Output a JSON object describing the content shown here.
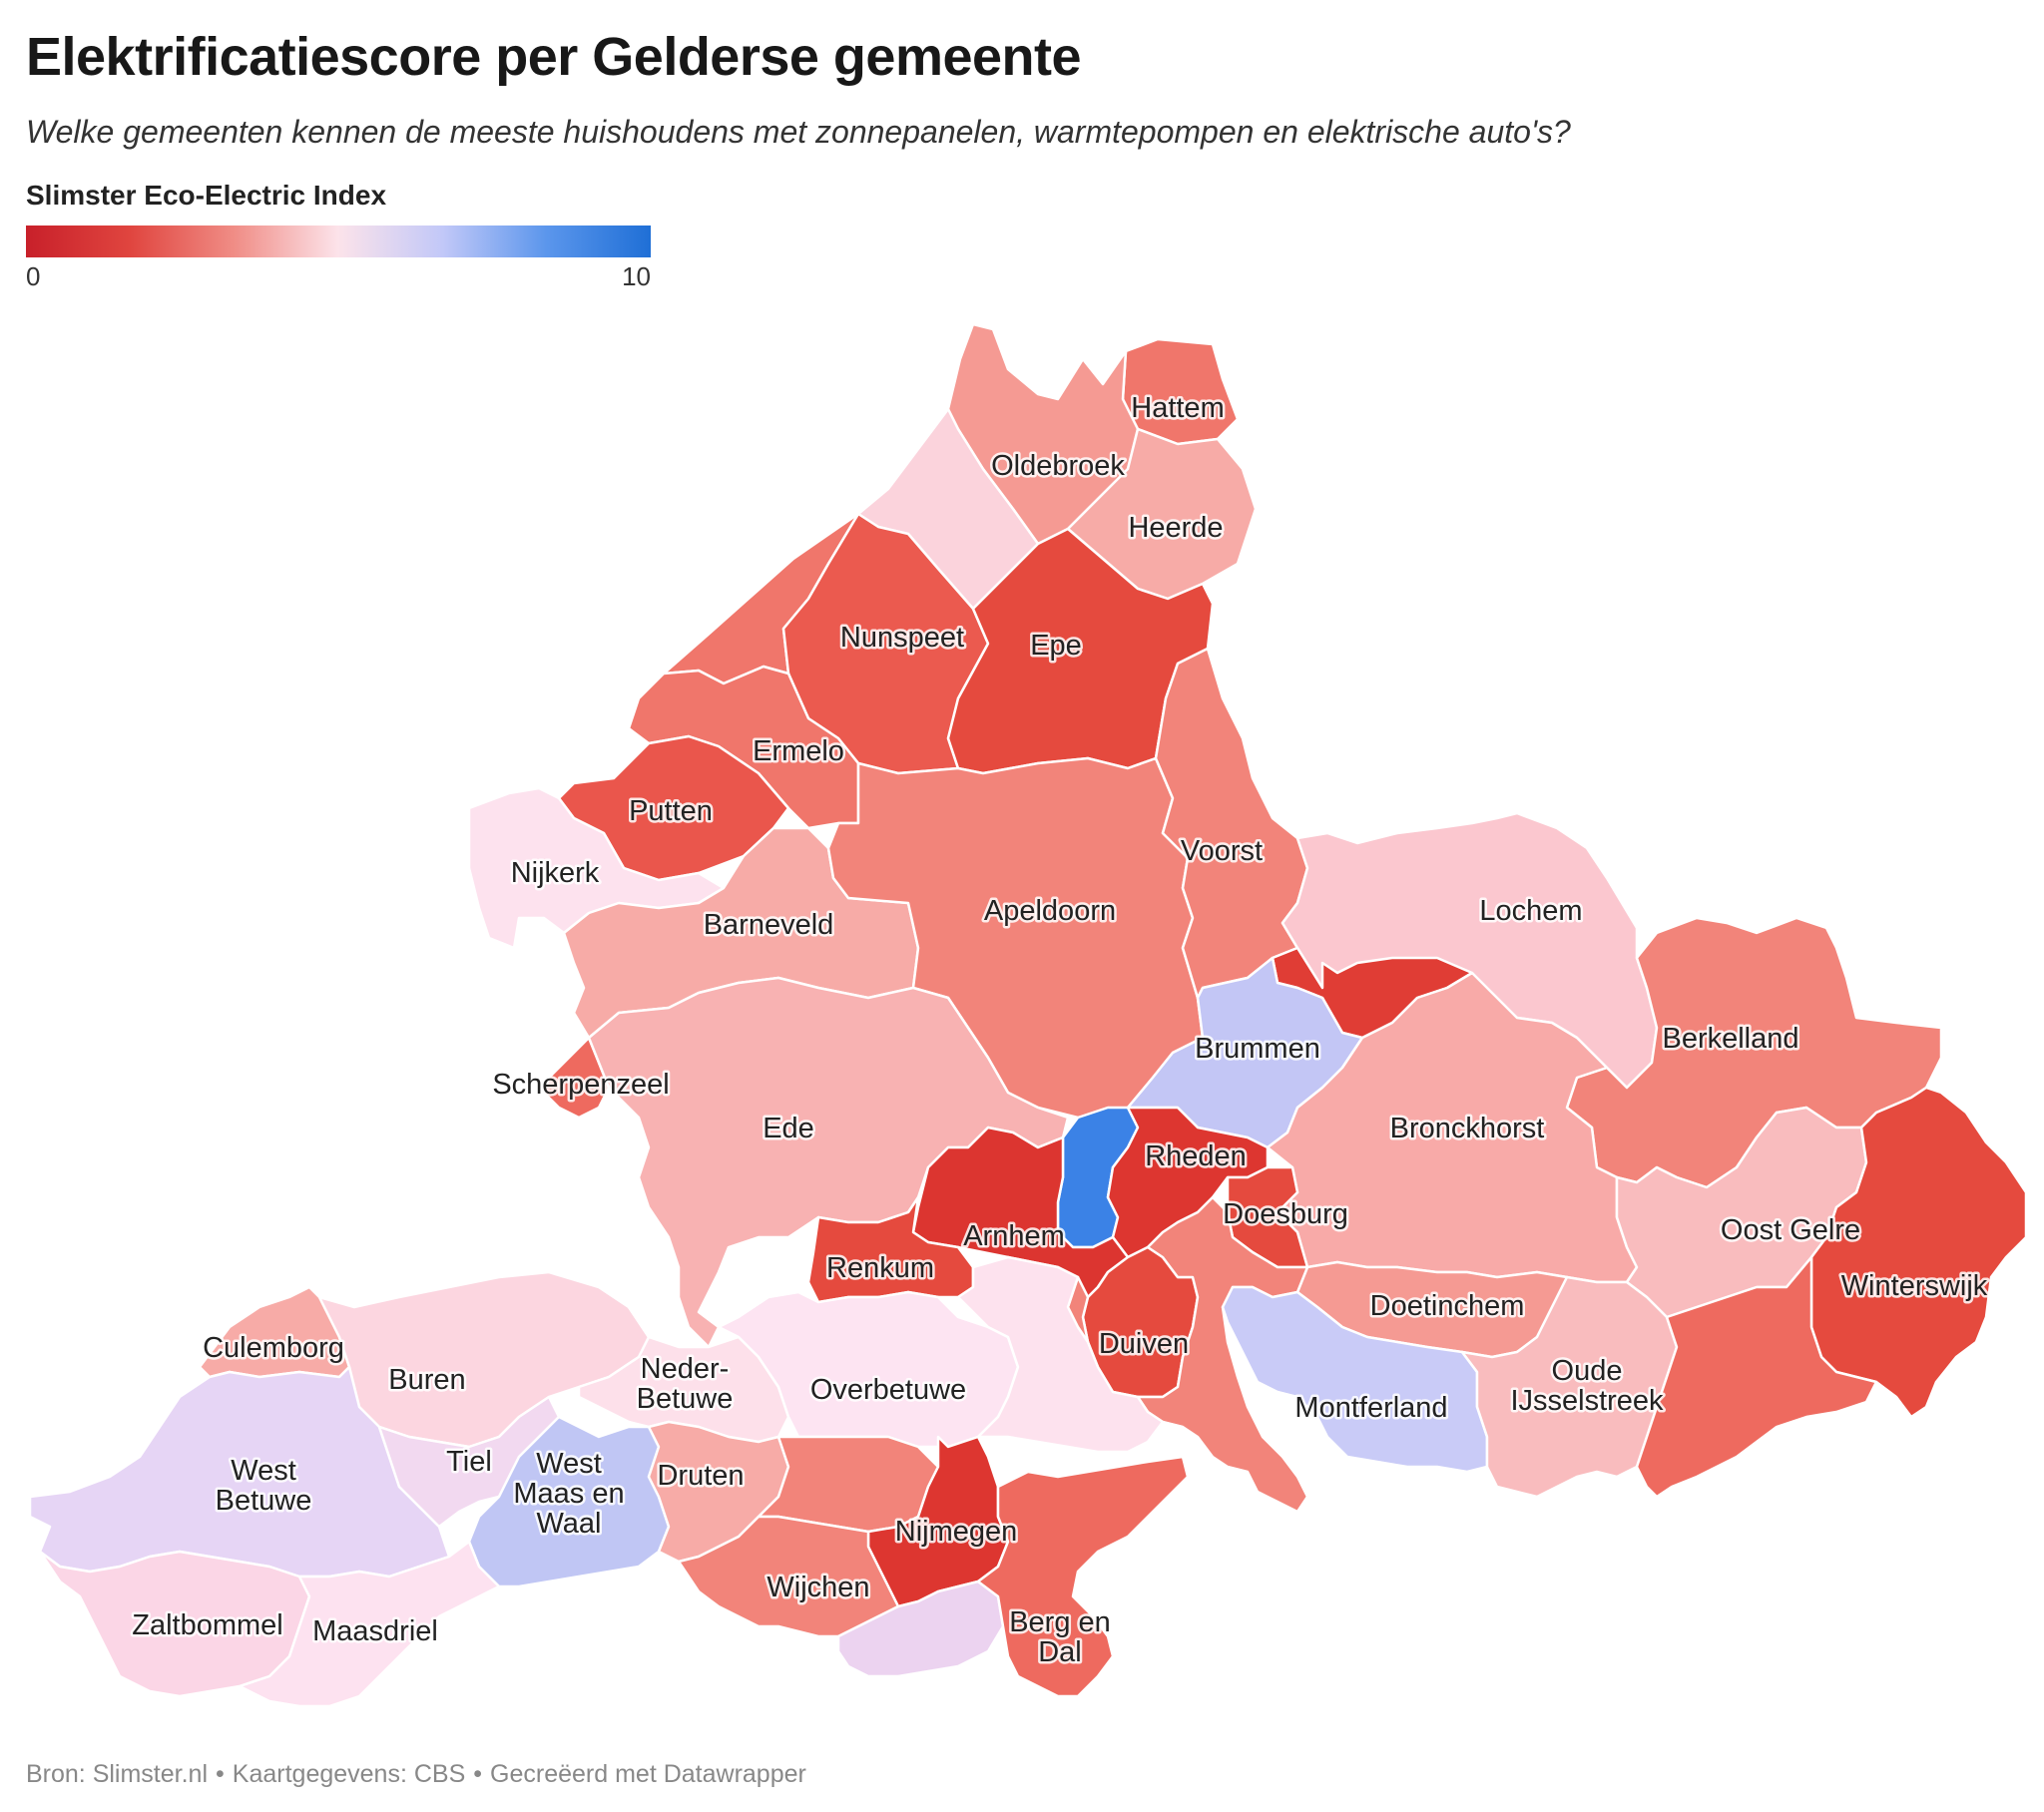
{
  "header": {
    "title": "Elektrificatiescore per Gelderse gemeente",
    "subtitle": "Welke gemeenten kennen de meeste huishoudens met zonnepanelen, warmtepompen en elektrische auto's?"
  },
  "legend": {
    "title": "Slimster Eco-Electric Index",
    "min_label": "0",
    "max_label": "10",
    "scale_min": 0,
    "scale_max": 10,
    "colors": [
      "#c8202a",
      "#e0453f",
      "#f08d86",
      "#fce3ea",
      "#c2c8f8",
      "#5b96ec",
      "#1f6fd6"
    ]
  },
  "map": {
    "municipalities": [
      {
        "id": "hattem",
        "name": "Hattem",
        "color": "#f0766b"
      },
      {
        "id": "oldebroek",
        "name": "Oldebroek",
        "color": "#f59a93"
      },
      {
        "id": "heerde",
        "name": "Heerde",
        "color": "#f7aba7"
      },
      {
        "id": "elburg",
        "name": "",
        "color": "#fbd3dc"
      },
      {
        "id": "harderwijk",
        "name": "",
        "color": "#f0766b"
      },
      {
        "id": "nunspeet",
        "name": "Nunspeet",
        "color": "#eb5a4f"
      },
      {
        "id": "epe",
        "name": "Epe",
        "color": "#e54a3e"
      },
      {
        "id": "ermelo",
        "name": "Ermelo",
        "color": "#f0766b"
      },
      {
        "id": "putten",
        "name": "Putten",
        "color": "#ea564c"
      },
      {
        "id": "nijkerk",
        "name": "Nijkerk",
        "color": "#fde2ee"
      },
      {
        "id": "barneveld",
        "name": "Barneveld",
        "color": "#f7aba7"
      },
      {
        "id": "apeldoorn",
        "name": "Apeldoorn",
        "color": "#f2847a"
      },
      {
        "id": "voorst",
        "name": "Voorst",
        "color": "#f2847a"
      },
      {
        "id": "lochem",
        "name": "Lochem",
        "color": "#fbc7cf"
      },
      {
        "id": "berkelland",
        "name": "Berkelland",
        "color": "#f2847a"
      },
      {
        "id": "zutphen",
        "name": "",
        "color": "#e03d35"
      },
      {
        "id": "brummen",
        "name": "Brummen",
        "color": "#c3c6f5"
      },
      {
        "id": "scherpenzeel",
        "name": "Scherpenzeel",
        "color": "#ee6a5f"
      },
      {
        "id": "ede",
        "name": "Ede",
        "color": "#f8b2b2"
      },
      {
        "id": "rozendaal",
        "name": "",
        "color": "#3b82e6"
      },
      {
        "id": "rheden",
        "name": "Rheden",
        "color": "#dd3630"
      },
      {
        "id": "bronckhorst",
        "name": "Bronckhorst",
        "color": "#f8aaa8"
      },
      {
        "id": "doesburg",
        "name": "Doesburg",
        "color": "#e54a3e"
      },
      {
        "id": "arnhem",
        "name": "Arnhem",
        "color": "#dc3530"
      },
      {
        "id": "renkum",
        "name": "Renkum",
        "color": "#e54a3e"
      },
      {
        "id": "oostgelre",
        "name": "Oost Gelre",
        "color": "#f9bcbe"
      },
      {
        "id": "winterswijk",
        "name": "Winterswijk",
        "color": "#e54a3e"
      },
      {
        "id": "doetinchem",
        "name": "Doetinchem",
        "color": "#f59a93"
      },
      {
        "id": "duiven",
        "name": "Duiven",
        "color": "#e54a3e"
      },
      {
        "id": "westervoort",
        "name": "",
        "color": "#f2847a"
      },
      {
        "id": "zevenaar",
        "name": "",
        "color": "#f2847a"
      },
      {
        "id": "montferland",
        "name": "Montferland",
        "color": "#c9cbf7"
      },
      {
        "id": "oudeijsselstreek",
        "name": "Oude\nIJsselstreek",
        "color": "#f9bcbe"
      },
      {
        "id": "aaltenSouth",
        "name": "",
        "color": "#ee6a5f"
      },
      {
        "id": "culemborg",
        "name": "Culemborg",
        "color": "#f7aba7"
      },
      {
        "id": "buren",
        "name": "Buren",
        "color": "#fcd6e0"
      },
      {
        "id": "nederbetuwe",
        "name": "Neder-\nBetuwe",
        "color": "#fde0ea"
      },
      {
        "id": "overbetuwe",
        "name": "Overbetuwe",
        "color": "#fde4f2"
      },
      {
        "id": "lingewaard",
        "name": "",
        "color": "#fde2ee"
      },
      {
        "id": "westbetuwe",
        "name": "West\nBetuwe",
        "color": "#e6d5f5"
      },
      {
        "id": "tiel",
        "name": "Tiel",
        "color": "#f2d9f0"
      },
      {
        "id": "westmaasenwaal",
        "name": "West\nMaas en\nWaal",
        "color": "#c0c6f4"
      },
      {
        "id": "druten",
        "name": "Druten",
        "color": "#f7aba7"
      },
      {
        "id": "beuningen",
        "name": "",
        "color": "#f2847a"
      },
      {
        "id": "nijmegen",
        "name": "Nijmegen",
        "color": "#dd3630"
      },
      {
        "id": "wijchen",
        "name": "Wijchen",
        "color": "#f2847a"
      },
      {
        "id": "heumen",
        "name": "",
        "color": "#ecd3f0"
      },
      {
        "id": "bergendal",
        "name": "Berg en\nDal",
        "color": "#ee6a5f"
      },
      {
        "id": "zaltbommel",
        "name": "Zaltbommel",
        "color": "#fbd6e6"
      },
      {
        "id": "maasdriel",
        "name": "Maasdriel",
        "color": "#fde2f0"
      }
    ]
  },
  "footer": {
    "source": "Bron: Slimster.nl",
    "mapdata": "Kaartgegevens: CBS",
    "created": "Gecreëerd met Datawrapper",
    "separator": "•"
  }
}
